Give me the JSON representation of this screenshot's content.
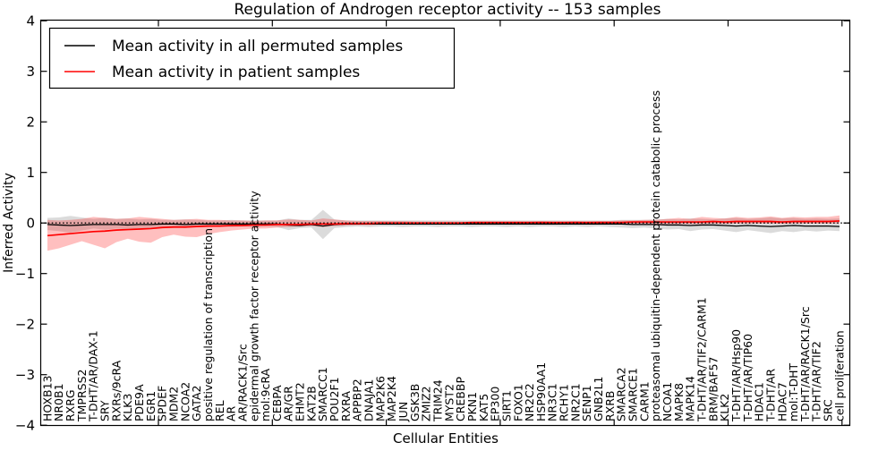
{
  "chart_data": {
    "type": "line",
    "title": "Regulation of Androgen receptor activity -- 153 samples",
    "xlabel": "Cellular Entities",
    "ylabel": "Inferred Activity",
    "ylim": [
      -4,
      4
    ],
    "yticks": [
      -4,
      -3,
      -2,
      -1,
      0,
      1,
      2,
      3,
      4
    ],
    "grid": false,
    "zero_line": {
      "y": 0,
      "style": "dotted",
      "color": "#000000"
    },
    "legend": {
      "position": "upper left",
      "entries": [
        {
          "label": "Mean activity in all permuted samples",
          "color": "#000000"
        },
        {
          "label": "Mean activity in patient samples",
          "color": "#ff0000"
        }
      ]
    },
    "categories": [
      "HOXB13",
      "NR0B1",
      "RXRG",
      "TMPRSS2",
      "T-DHT/AR/DAX-1",
      "SRY",
      "RXRs/9cRA",
      "KLK3",
      "PDE9A",
      "EGR1",
      "SPDEF",
      "MDM2",
      "NCOA2",
      "GATA2",
      "positive regulation of transcription",
      "REL",
      "AR",
      "AR/RACK1/Src",
      "epidermal growth factor receptor activity",
      "mol:9cRA",
      "CEBPA",
      "AR/GR",
      "EHMT2",
      "KAT2B",
      "SMARCC1",
      "POU2F1",
      "RXRA",
      "APPBP2",
      "DNAJA1",
      "MAP2K6",
      "MAP2K4",
      "JUN",
      "GSK3B",
      "ZMIZ2",
      "TRIM24",
      "MYST2",
      "CREBBP",
      "PKN1",
      "KAT5",
      "EP300",
      "SIRT1",
      "FOXO1",
      "NR2C2",
      "HSP90AA1",
      "NR3C1",
      "RCHY1",
      "NR2C1",
      "SENP1",
      "GNB2L1",
      "RXRB",
      "SMARCA2",
      "SMARCE1",
      "CARM1",
      "proteasomal ubiquitin-dependent protein catabolic process",
      "NCOA1",
      "MAPK8",
      "MAPK14",
      "T-DHT/AR/TIF2/CARM1",
      "BRM/BAF57",
      "KLK2",
      "T-DHT/AR/Hsp90",
      "T-DHT/AR/TIP60",
      "HDAC1",
      "T-DHT/AR",
      "HDAC7",
      "mol:T-DHT",
      "T-DHT/AR/RACK1/Src",
      "T-DHT/AR/TIF2",
      "SRC",
      "cell proliferation"
    ],
    "series": [
      {
        "name": "Mean activity in all permuted samples",
        "color": "#000000",
        "values": [
          -0.03,
          -0.04,
          -0.05,
          -0.04,
          -0.03,
          -0.03,
          -0.03,
          -0.04,
          -0.03,
          -0.03,
          -0.02,
          -0.02,
          -0.03,
          -0.02,
          -0.02,
          -0.02,
          -0.02,
          -0.02,
          -0.02,
          -0.02,
          -0.02,
          -0.04,
          -0.05,
          -0.03,
          -0.06,
          -0.03,
          -0.02,
          -0.02,
          -0.02,
          -0.02,
          -0.02,
          -0.02,
          -0.02,
          -0.02,
          -0.02,
          -0.02,
          -0.02,
          -0.02,
          -0.02,
          -0.02,
          -0.02,
          -0.02,
          -0.02,
          -0.02,
          -0.02,
          -0.02,
          -0.02,
          -0.02,
          -0.02,
          -0.02,
          -0.02,
          -0.03,
          -0.03,
          -0.03,
          -0.04,
          -0.04,
          -0.05,
          -0.04,
          -0.04,
          -0.05,
          -0.06,
          -0.05,
          -0.06,
          -0.07,
          -0.06,
          -0.05,
          -0.06,
          -0.06,
          -0.06,
          -0.07
        ]
      },
      {
        "name": "Mean activity in patient samples",
        "color": "#ff0000",
        "values": [
          -0.25,
          -0.23,
          -0.21,
          -0.19,
          -0.17,
          -0.16,
          -0.14,
          -0.13,
          -0.12,
          -0.11,
          -0.09,
          -0.08,
          -0.08,
          -0.07,
          -0.06,
          -0.06,
          -0.05,
          -0.05,
          -0.04,
          -0.04,
          -0.03,
          -0.03,
          -0.03,
          -0.02,
          -0.02,
          -0.02,
          -0.01,
          -0.01,
          -0.01,
          0.0,
          0.0,
          0.0,
          0.0,
          0.0,
          0.0,
          0.0,
          0.0,
          0.01,
          0.01,
          0.01,
          0.01,
          0.01,
          0.01,
          0.01,
          0.01,
          0.01,
          0.01,
          0.01,
          0.01,
          0.01,
          0.01,
          0.02,
          0.02,
          0.02,
          0.02,
          0.02,
          0.02,
          0.02,
          0.03,
          0.02,
          0.03,
          0.03,
          0.03,
          0.03,
          0.02,
          0.03,
          0.03,
          0.03,
          0.03,
          0.04
        ]
      }
    ],
    "bands": [
      {
        "name": "permuted-samples-range",
        "color": "#000000",
        "opacity": 0.14,
        "low": [
          -0.14,
          -0.16,
          -0.19,
          -0.15,
          -0.11,
          -0.13,
          -0.11,
          -0.13,
          -0.1,
          -0.11,
          -0.09,
          -0.08,
          -0.1,
          -0.08,
          -0.08,
          -0.07,
          -0.08,
          -0.07,
          -0.08,
          -0.07,
          -0.08,
          -0.14,
          -0.1,
          -0.09,
          -0.32,
          -0.1,
          -0.08,
          -0.07,
          -0.08,
          -0.07,
          -0.07,
          -0.08,
          -0.07,
          -0.07,
          -0.08,
          -0.07,
          -0.07,
          -0.08,
          -0.07,
          -0.07,
          -0.08,
          -0.07,
          -0.08,
          -0.07,
          -0.07,
          -0.08,
          -0.07,
          -0.08,
          -0.07,
          -0.08,
          -0.09,
          -0.1,
          -0.09,
          -0.11,
          -0.13,
          -0.12,
          -0.16,
          -0.13,
          -0.12,
          -0.15,
          -0.18,
          -0.14,
          -0.17,
          -0.2,
          -0.16,
          -0.18,
          -0.15,
          -0.17,
          -0.15,
          -0.16
        ],
        "high": [
          0.1,
          0.11,
          0.14,
          0.11,
          0.08,
          0.1,
          0.08,
          0.09,
          0.07,
          0.08,
          0.06,
          0.06,
          0.07,
          0.06,
          0.05,
          0.05,
          0.06,
          0.05,
          0.05,
          0.05,
          0.05,
          0.09,
          0.06,
          0.06,
          0.26,
          0.07,
          0.05,
          0.05,
          0.05,
          0.05,
          0.05,
          0.05,
          0.05,
          0.05,
          0.05,
          0.05,
          0.05,
          0.05,
          0.05,
          0.05,
          0.05,
          0.05,
          0.05,
          0.05,
          0.05,
          0.05,
          0.05,
          0.05,
          0.05,
          0.05,
          0.06,
          0.06,
          0.06,
          0.07,
          0.08,
          0.07,
          0.09,
          0.08,
          0.07,
          0.09,
          0.1,
          0.08,
          0.09,
          0.11,
          0.09,
          0.1,
          0.08,
          0.09,
          0.08,
          0.09
        ]
      },
      {
        "name": "patient-samples-range",
        "color": "#ff0000",
        "opacity": 0.25,
        "low": [
          -0.55,
          -0.5,
          -0.43,
          -0.36,
          -0.43,
          -0.5,
          -0.38,
          -0.31,
          -0.37,
          -0.39,
          -0.28,
          -0.23,
          -0.27,
          -0.28,
          -0.22,
          -0.18,
          -0.15,
          -0.13,
          -0.11,
          -0.11,
          -0.09,
          -0.08,
          -0.07,
          -0.06,
          -0.08,
          -0.06,
          -0.05,
          -0.04,
          -0.04,
          -0.03,
          -0.03,
          -0.03,
          -0.03,
          -0.02,
          -0.02,
          -0.02,
          -0.02,
          -0.02,
          -0.02,
          -0.02,
          -0.02,
          -0.02,
          -0.02,
          -0.02,
          -0.02,
          -0.02,
          -0.02,
          -0.02,
          -0.02,
          -0.02,
          -0.02,
          -0.02,
          -0.02,
          -0.02,
          -0.02,
          -0.02,
          -0.02,
          -0.02,
          -0.01,
          -0.02,
          -0.01,
          -0.01,
          -0.01,
          -0.01,
          -0.02,
          -0.01,
          -0.01,
          -0.01,
          -0.01,
          -0.01
        ],
        "high": [
          0.06,
          0.05,
          0.06,
          0.08,
          0.12,
          0.1,
          0.08,
          0.09,
          0.12,
          0.1,
          0.08,
          0.06,
          0.07,
          0.08,
          0.06,
          0.06,
          0.05,
          0.05,
          0.04,
          0.05,
          0.05,
          0.07,
          0.06,
          0.05,
          0.09,
          0.07,
          0.05,
          0.04,
          0.04,
          0.04,
          0.04,
          0.04,
          0.03,
          0.03,
          0.03,
          0.03,
          0.03,
          0.03,
          0.03,
          0.03,
          0.03,
          0.03,
          0.03,
          0.04,
          0.03,
          0.03,
          0.04,
          0.03,
          0.04,
          0.04,
          0.05,
          0.05,
          0.06,
          0.06,
          0.08,
          0.1,
          0.08,
          0.12,
          0.1,
          0.09,
          0.12,
          0.1,
          0.11,
          0.13,
          0.1,
          0.12,
          0.11,
          0.12,
          0.12,
          0.15
        ]
      }
    ]
  }
}
